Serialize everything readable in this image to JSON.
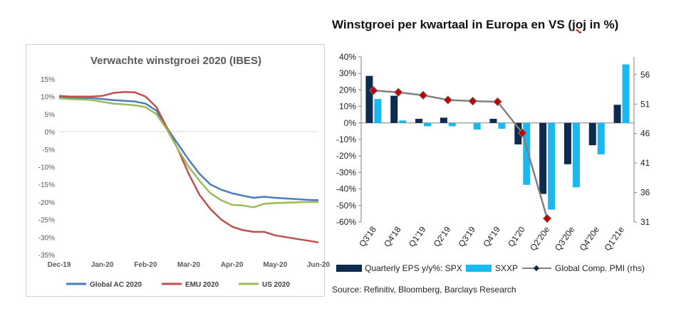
{
  "chart_data": [
    {
      "type": "line",
      "title": "Verwachte winstgroei 2020 (IBES)",
      "x_ticks": [
        "Dec-19",
        "Jan-20",
        "Feb-20",
        "Mar-20",
        "Apr-20",
        "May-20",
        "Jun-20"
      ],
      "y_ticks": [
        "15%",
        "10%",
        "5%",
        "0%",
        "-5%",
        "-10%",
        "-15%",
        "-20%",
        "-25%",
        "-30%",
        "-35%"
      ],
      "ylim": [
        -35,
        15
      ],
      "grid": false,
      "legend_position": "bottom",
      "series": [
        {
          "name": "Global AC 2020",
          "color": "#4a7ebb",
          "x": [
            0,
            0.25,
            0.5,
            0.75,
            1.0,
            1.25,
            1.5,
            1.75,
            2.0,
            2.25,
            2.5,
            2.75,
            3.0,
            3.25,
            3.5,
            3.75,
            4.0,
            4.25,
            4.5,
            4.75,
            5.0,
            5.25,
            5.5,
            5.75,
            6.0
          ],
          "values": [
            9.8,
            9.7,
            9.6,
            9.6,
            9.3,
            9.0,
            8.8,
            8.6,
            8.0,
            6.0,
            1.0,
            -3.5,
            -8.0,
            -12.0,
            -15.0,
            -16.5,
            -17.5,
            -18.2,
            -18.8,
            -18.5,
            -18.8,
            -19.0,
            -19.2,
            -19.4,
            -19.5
          ]
        },
        {
          "name": "EMU 2020",
          "color": "#c0504d",
          "x": [
            0,
            0.25,
            0.5,
            0.75,
            1.0,
            1.25,
            1.5,
            1.75,
            2.0,
            2.25,
            2.5,
            2.75,
            3.0,
            3.25,
            3.5,
            3.75,
            4.0,
            4.25,
            4.5,
            4.75,
            5.0,
            5.25,
            5.5,
            5.75,
            6.0
          ],
          "values": [
            10.2,
            10.0,
            10.0,
            10.0,
            10.2,
            11.0,
            11.3,
            11.2,
            10.0,
            7.0,
            1.0,
            -5.0,
            -12.0,
            -18.0,
            -22.0,
            -25.0,
            -27.0,
            -28.0,
            -28.5,
            -28.5,
            -29.5,
            -30.0,
            -30.5,
            -31.0,
            -31.5
          ]
        },
        {
          "name": "US 2020",
          "color": "#9bbb59",
          "x": [
            0,
            0.25,
            0.5,
            0.75,
            1.0,
            1.25,
            1.5,
            1.75,
            2.0,
            2.25,
            2.5,
            2.75,
            3.0,
            3.25,
            3.5,
            3.75,
            4.0,
            4.25,
            4.5,
            4.75,
            5.0,
            5.25,
            5.5,
            5.75,
            6.0
          ],
          "values": [
            9.5,
            9.3,
            9.2,
            9.0,
            8.5,
            8.0,
            7.8,
            7.5,
            7.0,
            5.0,
            0.5,
            -5.0,
            -10.0,
            -14.0,
            -17.5,
            -19.5,
            -20.8,
            -21.0,
            -21.5,
            -20.5,
            -20.3,
            -20.2,
            -20.1,
            -20.0,
            -20.0
          ]
        }
      ]
    },
    {
      "type": "bar",
      "title_prefix": "Winstgroei per kwartaal in Europa en VS (",
      "title_underlined": "joj",
      "title_suffix": " in %)",
      "categories": [
        "Q3'18",
        "Q4'18",
        "Q1'19",
        "Q2'19",
        "Q3'19",
        "Q4'19",
        "Q1'20",
        "Q2'20e",
        "Q3'20e",
        "Q4'20e",
        "Q1'21e"
      ],
      "ylim_left": [
        -60,
        40
      ],
      "left_ticks": [
        "40%",
        "30%",
        "20%",
        "10%",
        "0%",
        "-10%",
        "-20%",
        "-30%",
        "-40%",
        "-50%",
        "-60%"
      ],
      "ylim_right": [
        31,
        59
      ],
      "right_ticks": [
        56,
        51,
        46,
        41,
        36,
        31
      ],
      "grid": false,
      "legend_position": "bottom",
      "series": [
        {
          "name": "Quarterly EPS y/y%: SPX",
          "kind": "bar",
          "color": "#0d2b4e",
          "values": [
            28.5,
            16.5,
            2.5,
            3.2,
            0,
            2.5,
            -13,
            -43,
            -25,
            -13.5,
            11
          ]
        },
        {
          "name": "SXXP",
          "kind": "bar",
          "color": "#19b8f0",
          "values": [
            14.5,
            1.5,
            -2,
            -2,
            -4,
            -3.5,
            -37.5,
            -52.5,
            -39,
            -19,
            35.5
          ]
        },
        {
          "name": "Global Comp. PMI (rhs)",
          "kind": "line",
          "color": "#808080",
          "marker_color": "#c00000",
          "values": [
            53.3,
            53.0,
            52.5,
            51.7,
            51.5,
            51.4,
            46.1,
            null,
            null,
            null,
            null
          ]
        }
      ],
      "pmi_extra_point": {
        "category": "Q2'20e",
        "value": 31.6
      }
    }
  ],
  "source": "Source: Refinitiv, Bloomberg, Barclays Research"
}
